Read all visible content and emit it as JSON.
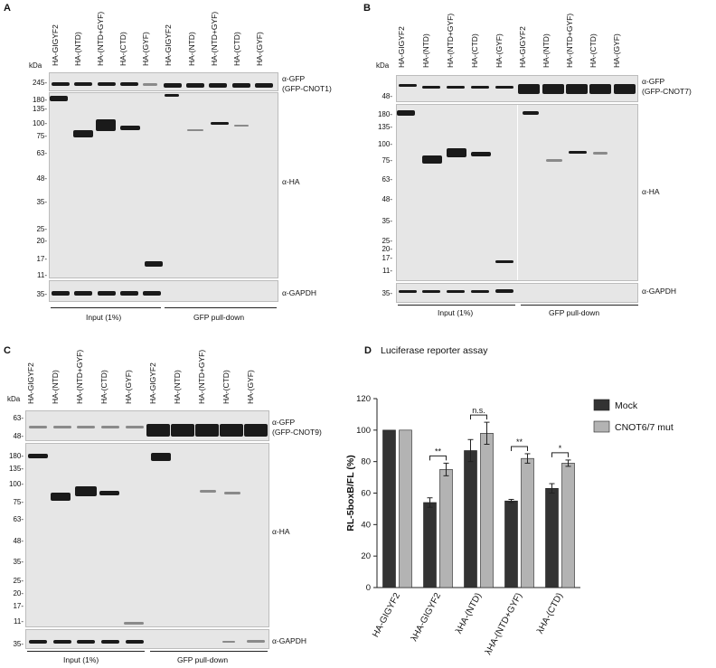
{
  "panels": {
    "A": {
      "letter": "A",
      "kda": "kDa",
      "lanes": [
        "HA-GIGYF2",
        "HA-(NTD)",
        "HA-(NTD+GYF)",
        "HA-(CTD)",
        "HA-(GYF)",
        "HA-GIGYF2",
        "HA-(NTD)",
        "HA-(NTD+GYF)",
        "HA-(CTD)",
        "HA-(GYF)"
      ],
      "gfp_markers": [
        "245-"
      ],
      "ha_markers": [
        "180-",
        "135-",
        "100-",
        "75-",
        "63-",
        "48-",
        "35-",
        "25-",
        "20-",
        "17-",
        "11-"
      ],
      "gapdh_markers": [
        "35-"
      ],
      "ab_gfp": "α-GFP",
      "ab_gfp_sub": "(GFP-CNOT1)",
      "ab_ha": "α-HA",
      "ab_gapdh": "α-GAPDH",
      "group_input": "Input (1%)",
      "group_pd": "GFP pull-down"
    },
    "B": {
      "letter": "B",
      "kda": "kDa",
      "lanes": [
        "HA-GIGYF2",
        "HA-(NTD)",
        "HA-(NTD+GYF)",
        "HA-(CTD)",
        "HA-(GYF)",
        "HA-GIGYF2",
        "HA-(NTD)",
        "HA-(NTD+GYF)",
        "HA-(CTD)",
        "HA-(GYF)"
      ],
      "gfp_markers": [
        "48-"
      ],
      "ha_markers": [
        "180-",
        "135-",
        "100-",
        "75-",
        "63-",
        "48-",
        "35-",
        "25-",
        "20-",
        "17-",
        "11-"
      ],
      "gapdh_markers": [
        "35-"
      ],
      "ab_gfp": "α-GFP",
      "ab_gfp_sub": "(GFP-CNOT7)",
      "ab_ha": "α-HA",
      "ab_gapdh": "α-GAPDH",
      "group_input": "Input (1%)",
      "group_pd": "GFP pull-down"
    },
    "C": {
      "letter": "C",
      "kda": "kDa",
      "lanes": [
        "HA-GIGYF2",
        "HA-(NTD)",
        "HA-(NTD+GYF)",
        "HA-(CTD)",
        "HA-(GYF)",
        "HA-GIGYF2",
        "HA-(NTD)",
        "HA-(NTD+GYF)",
        "HA-(CTD)",
        "HA-(GYF)"
      ],
      "gfp_markers": [
        "63-",
        "48-"
      ],
      "ha_markers": [
        "180-",
        "135-",
        "100-",
        "75-",
        "63-",
        "48-",
        "35-",
        "25-",
        "20-",
        "17-",
        "11-"
      ],
      "gapdh_markers": [
        "35-"
      ],
      "ab_gfp": "α-GFP",
      "ab_gfp_sub": "(GFP-CNOT9)",
      "ab_ha": "α-HA",
      "ab_gapdh": "α-GAPDH",
      "group_input": "Input (1%)",
      "group_pd": "GFP pull-down"
    },
    "D": {
      "letter": "D",
      "title": "Luciferase reporter assay"
    }
  },
  "chart_data": {
    "type": "bar",
    "title": "Luciferase reporter assay",
    "ylabel": "RL-5boxB/FL (%)",
    "xlabel": "",
    "ylim": [
      0,
      120
    ],
    "yticks": [
      "0",
      "20",
      "40",
      "60",
      "80",
      "100",
      "120"
    ],
    "categories": [
      "HA-GIGYF2",
      "λHA-GIGYF2",
      "λHA-(NTD)",
      "λHA-(NTD+GYF)",
      "λHA-(CTD)"
    ],
    "series": [
      {
        "name": "Mock",
        "color": "#333333",
        "values": [
          100,
          54,
          87,
          55,
          63
        ],
        "errors": [
          0,
          3,
          7,
          1,
          3
        ]
      },
      {
        "name": "CNOT6/7 mut",
        "color": "#b3b3b3",
        "values": [
          100,
          75,
          98,
          82,
          79
        ],
        "errors": [
          0,
          4,
          7,
          3,
          2
        ]
      }
    ],
    "significance": [
      "",
      "**",
      "n.s.",
      "**",
      "*"
    ],
    "legend_position": "right"
  }
}
